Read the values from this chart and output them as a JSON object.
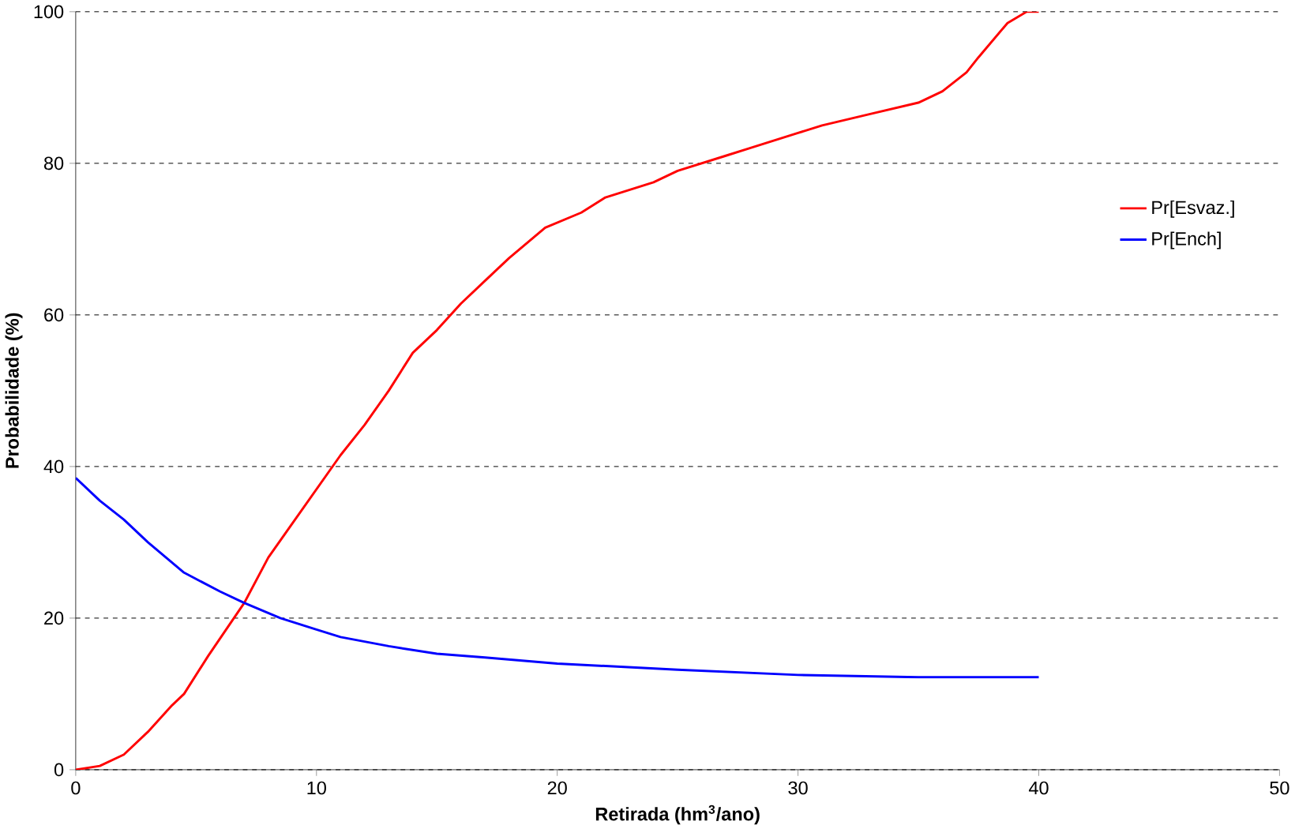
{
  "chart_data": {
    "type": "line",
    "xlabel": "Retirada (hm$^{3}$/ano)",
    "ylabel": "Probabilidade (%)",
    "xlim": [
      0,
      50
    ],
    "ylim": [
      0,
      100
    ],
    "xticks": [
      0,
      10,
      20,
      30,
      40,
      50
    ],
    "yticks": [
      0,
      20,
      40,
      60,
      80,
      100
    ],
    "grid": "y",
    "legend": "right",
    "line_style": "solid",
    "marker": "none",
    "series": [
      {
        "name": "Pr[Esvaz.]",
        "color": "#ff0000",
        "x": [
          0,
          1,
          2,
          3,
          4,
          4.5,
          5.5,
          7,
          8,
          9,
          10,
          11,
          12,
          13,
          14,
          15,
          16,
          17,
          18,
          19.5,
          21,
          22,
          24,
          25,
          27,
          28,
          30,
          31,
          33,
          35,
          36,
          37,
          37.5,
          38.7,
          39.5,
          40
        ],
        "values": [
          0,
          0.5,
          2,
          5,
          8.5,
          10,
          15,
          22,
          28,
          32.5,
          37,
          41.5,
          45.5,
          50,
          55,
          58,
          61.5,
          64.5,
          67.5,
          71.5,
          73.5,
          75.5,
          77.5,
          79,
          81,
          82,
          84,
          85,
          86.5,
          88,
          89.5,
          92,
          94,
          98.5,
          100,
          100
        ]
      },
      {
        "name": "Pr[Ench]",
        "color": "#0000ff",
        "x": [
          0,
          1,
          2,
          3,
          4.5,
          6,
          7,
          8.5,
          10,
          11,
          13,
          15,
          17,
          20,
          25,
          30,
          35,
          40
        ],
        "values": [
          38.5,
          35.5,
          33,
          30,
          26,
          23.5,
          22,
          20,
          18.5,
          17.5,
          16.3,
          15.3,
          14.8,
          14,
          13.2,
          12.5,
          12.2,
          12.2
        ]
      }
    ]
  }
}
